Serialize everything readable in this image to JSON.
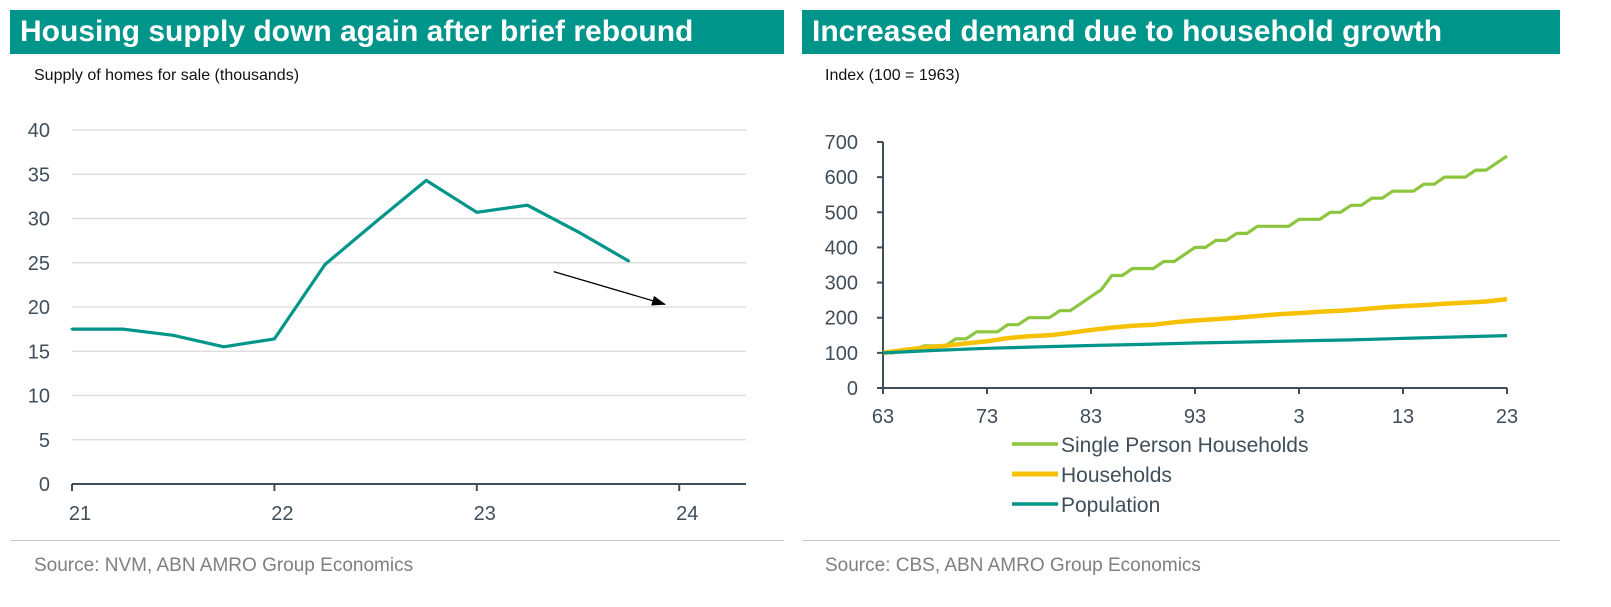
{
  "colors": {
    "title_bg": "#00958a",
    "teal": "#00958a",
    "green": "#8cc63f",
    "yellow": "#f6c100",
    "axis": "#404e5a",
    "grid": "#d9d9d9"
  },
  "left": {
    "title": "Housing supply down again after brief rebound",
    "subtitle": "Supply of homes for sale (thousands)",
    "source": "Source: NVM, ABN AMRO Group Economics"
  },
  "right": {
    "title": "Increased demand due to household growth",
    "subtitle": "Index (100 = 1963)",
    "source": "Source: CBS, ABN AMRO Group Economics"
  },
  "chart_data": [
    {
      "type": "line",
      "x_unit": "year (2021 = 21)",
      "x_ticks": [
        "21",
        "22",
        "23",
        "24"
      ],
      "x_tick_values": [
        2021,
        2022,
        2023,
        2024
      ],
      "xlim": [
        2021,
        2024.33
      ],
      "y_ticks": [
        "0",
        "5",
        "10",
        "15",
        "20",
        "25",
        "30",
        "35",
        "40"
      ],
      "ylim": [
        0,
        40
      ],
      "grid": true,
      "series": [
        {
          "color": "#00958a",
          "x": [
            2021.0,
            2021.25,
            2021.5,
            2021.75,
            2022.0,
            2022.25,
            2022.5,
            2022.75,
            2023.0,
            2023.25,
            2023.5,
            2023.75
          ],
          "y": [
            17.5,
            17.5,
            16.8,
            15.5,
            16.4,
            24.8,
            29.6,
            34.3,
            30.7,
            31.5,
            28.5,
            25.2
          ]
        }
      ],
      "annotation": {
        "type": "arrow",
        "from": [
          2023.38,
          24.0
        ],
        "to": [
          2023.93,
          20.3
        ]
      }
    },
    {
      "type": "line",
      "x_ticks": [
        "63",
        "73",
        "83",
        "93",
        "3",
        "13",
        "23"
      ],
      "x_tick_values": [
        1963,
        1973,
        1983,
        1993,
        2003,
        2013,
        2023
      ],
      "xlim": [
        1963,
        2023
      ],
      "y_ticks": [
        "0",
        "100",
        "200",
        "300",
        "400",
        "500",
        "600",
        "700"
      ],
      "ylim": [
        0,
        700
      ],
      "grid": false,
      "legend": "bottom",
      "series": [
        {
          "name": "Single Person Households",
          "color": "#8cc63f",
          "x": [
            1963,
            1964,
            1965,
            1966,
            1967,
            1968,
            1969,
            1970,
            1971,
            1972,
            1973,
            1974,
            1975,
            1976,
            1977,
            1978,
            1979,
            1980,
            1981,
            1982,
            1983,
            1984,
            1985,
            1986,
            1987,
            1988,
            1989,
            1990,
            1991,
            1992,
            1993,
            1994,
            1995,
            1996,
            1997,
            1998,
            1999,
            2000,
            2001,
            2002,
            2003,
            2004,
            2005,
            2006,
            2007,
            2008,
            2009,
            2010,
            2011,
            2012,
            2013,
            2014,
            2015,
            2016,
            2017,
            2018,
            2019,
            2020,
            2021,
            2022,
            2023
          ],
          "y": [
            100,
            100,
            110,
            110,
            120,
            120,
            120,
            140,
            140,
            160,
            160,
            160,
            180,
            180,
            200,
            200,
            200,
            220,
            220,
            240,
            260,
            280,
            320,
            320,
            340,
            340,
            340,
            360,
            360,
            380,
            400,
            400,
            420,
            420,
            440,
            440,
            460,
            460,
            460,
            460,
            480,
            480,
            480,
            500,
            500,
            520,
            520,
            540,
            540,
            560,
            560,
            560,
            580,
            580,
            600,
            600,
            600,
            620,
            620,
            640,
            660
          ]
        },
        {
          "name": "Households",
          "color": "#f6c100",
          "x": [
            1963,
            1965,
            1967,
            1969,
            1971,
            1973,
            1975,
            1977,
            1979,
            1981,
            1983,
            1985,
            1987,
            1989,
            1991,
            1993,
            1995,
            1997,
            1999,
            2001,
            2003,
            2005,
            2007,
            2009,
            2011,
            2013,
            2015,
            2017,
            2019,
            2021,
            2023
          ],
          "y": [
            100,
            108,
            115,
            120,
            127,
            133,
            142,
            147,
            150,
            157,
            165,
            172,
            177,
            180,
            187,
            192,
            196,
            200,
            205,
            210,
            213,
            217,
            220,
            224,
            229,
            233,
            236,
            240,
            243,
            246,
            253
          ]
        },
        {
          "name": "Population",
          "color": "#00958a",
          "x": [
            1963,
            1968,
            1973,
            1978,
            1983,
            1988,
            1993,
            1998,
            2003,
            2008,
            2013,
            2018,
            2023
          ],
          "y": [
            100,
            107,
            113,
            117,
            121,
            124,
            128,
            131,
            134,
            137,
            141,
            145,
            149
          ]
        }
      ]
    }
  ]
}
